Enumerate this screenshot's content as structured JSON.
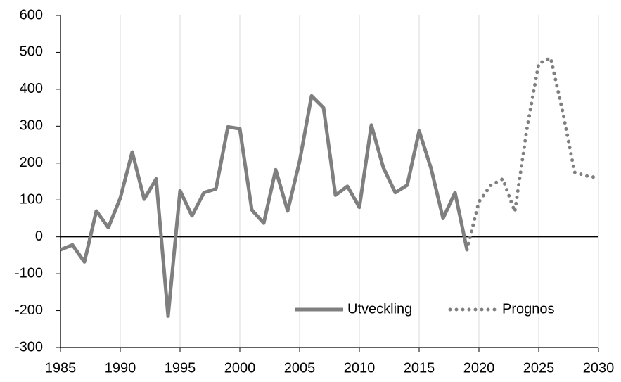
{
  "chart_data": {
    "type": "line",
    "x": [
      1985,
      1986,
      1987,
      1988,
      1989,
      1990,
      1991,
      1992,
      1993,
      1994,
      1995,
      1996,
      1997,
      1998,
      1999,
      2000,
      2001,
      2002,
      2003,
      2004,
      2005,
      2006,
      2007,
      2008,
      2009,
      2010,
      2011,
      2012,
      2013,
      2014,
      2015,
      2016,
      2017,
      2018,
      2019,
      2020,
      2021,
      2022,
      2023,
      2024,
      2025,
      2026,
      2027,
      2028,
      2029,
      2030
    ],
    "series": [
      {
        "name": "Utveckling",
        "color": "#7f7f7f",
        "dash": "solid",
        "values": [
          -35,
          -22,
          -68,
          70,
          25,
          105,
          230,
          102,
          157,
          -215,
          125,
          57,
          120,
          130,
          298,
          293,
          73,
          37,
          182,
          70,
          205,
          382,
          350,
          113,
          137,
          80,
          303,
          188,
          120,
          140,
          287,
          185,
          50,
          120,
          -35,
          null,
          null,
          null,
          null,
          null,
          null,
          null,
          null,
          null,
          null,
          null
        ]
      },
      {
        "name": "Prognos",
        "color": "#7f7f7f",
        "dash": "dotted",
        "values": [
          null,
          null,
          null,
          null,
          null,
          null,
          null,
          null,
          null,
          null,
          null,
          null,
          null,
          null,
          null,
          null,
          null,
          null,
          null,
          null,
          null,
          null,
          null,
          null,
          null,
          null,
          null,
          null,
          null,
          null,
          null,
          null,
          null,
          null,
          -35,
          95,
          140,
          157,
          68,
          290,
          470,
          485,
          340,
          175,
          165,
          160
        ]
      }
    ],
    "xlim": [
      1985,
      2030
    ],
    "xticks": [
      1985,
      1990,
      1995,
      2000,
      2005,
      2010,
      2015,
      2020,
      2025,
      2030
    ],
    "ylim": [
      -300,
      600
    ],
    "yticks": [
      -300,
      -200,
      -100,
      0,
      100,
      200,
      300,
      400,
      500,
      600
    ],
    "grid": "x",
    "legend": "lower-right"
  }
}
